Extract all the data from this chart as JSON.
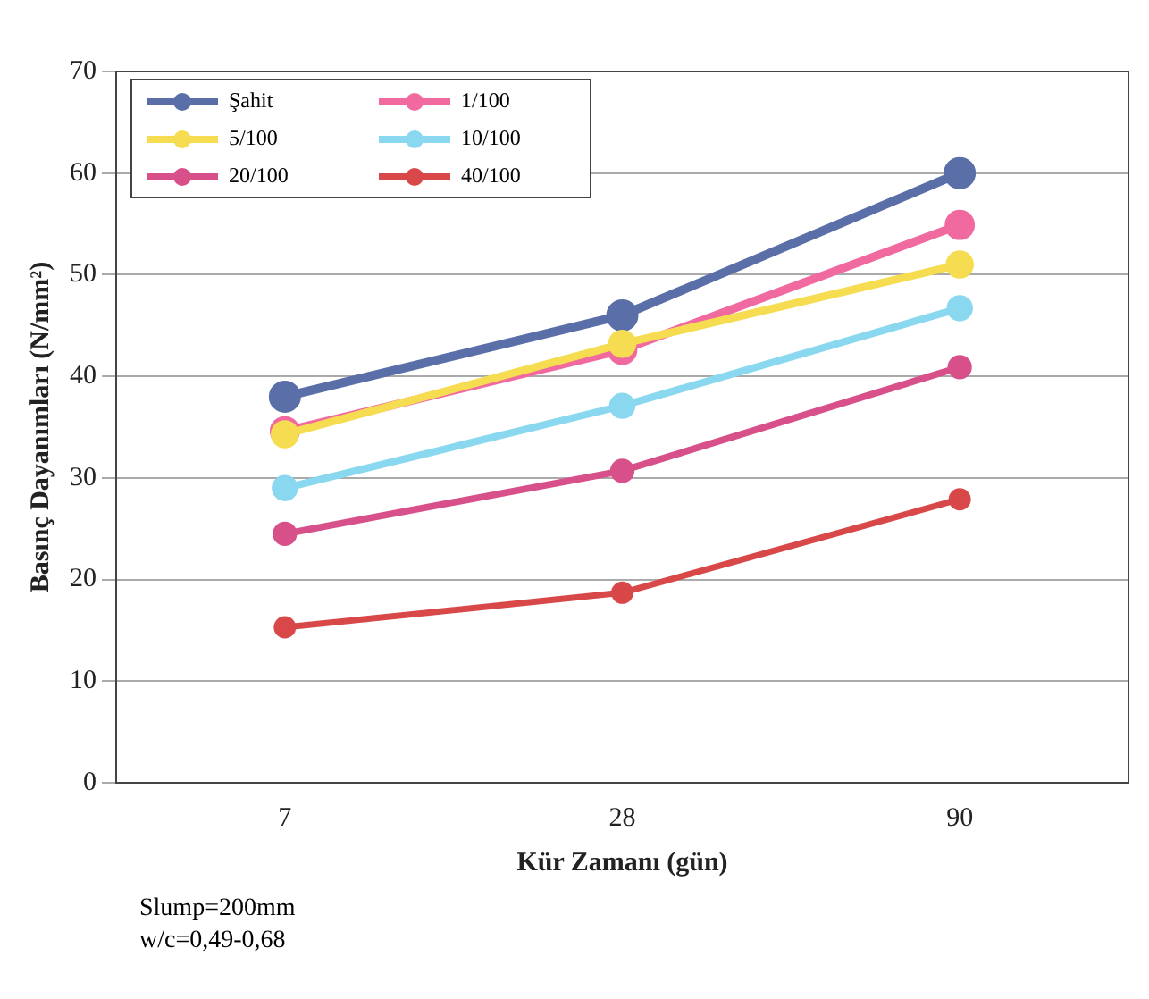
{
  "chart_data": {
    "type": "line",
    "xlabel": "Kür Zamanı (gün)",
    "ylabel": "Basınç Dayanımları (N/mm²)",
    "categories": [
      "7",
      "28",
      "90"
    ],
    "series": [
      {
        "name": "Şahit",
        "color": "#5a6fa8",
        "values": [
          38.0,
          46.0,
          60.0
        ]
      },
      {
        "name": "1/100",
        "color": "#f06aa0",
        "values": [
          34.6,
          42.6,
          54.9
        ]
      },
      {
        "name": "5/100",
        "color": "#f5dc50",
        "values": [
          34.3,
          43.2,
          51.0
        ]
      },
      {
        "name": "10/100",
        "color": "#8ad8f0",
        "values": [
          29.0,
          37.1,
          46.7
        ]
      },
      {
        "name": "20/100",
        "color": "#d8508a",
        "values": [
          24.5,
          30.7,
          40.9
        ]
      },
      {
        "name": "40/100",
        "color": "#d84848",
        "values": [
          15.3,
          18.7,
          27.9
        ]
      }
    ],
    "ylim": [
      0,
      70
    ],
    "yticks": [
      0,
      10,
      20,
      30,
      40,
      50,
      60,
      70
    ],
    "grid": "y",
    "legend": "top left",
    "marker": "circle",
    "annotations": [
      "Slump=200mm",
      "w/c=0,49-0,68"
    ]
  }
}
